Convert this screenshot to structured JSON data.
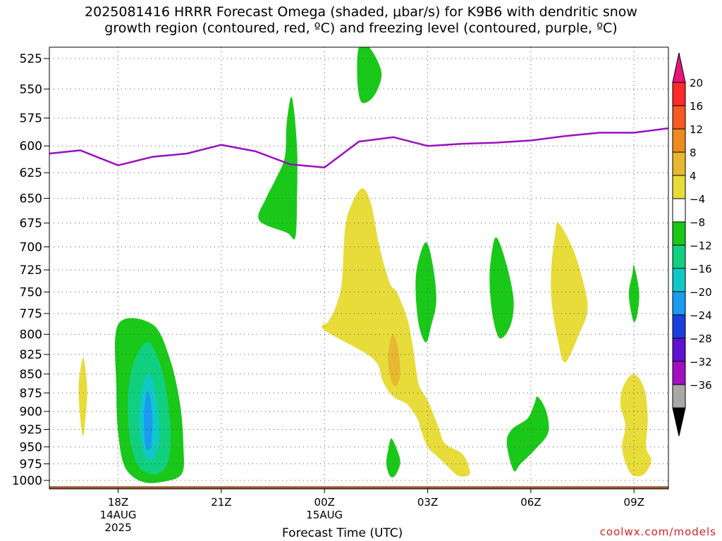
{
  "title": {
    "line1": "2025081416 HRRR Forecast Omega (shaded, μbar/s) for K9B6 with dendritic snow",
    "line2": "growth region (contoured, red, ºC) and freezing level (contoured, purple, ºC)"
  },
  "credit": "coolwx.com/models",
  "chart_data": {
    "type": "contour",
    "xlabel": "Forecast Time (UTC)",
    "x_ticks": [
      {
        "hour": 2,
        "label": "18Z",
        "sub1": "14AUG",
        "sub2": "2025"
      },
      {
        "hour": 5,
        "label": "21Z",
        "sub1": "",
        "sub2": ""
      },
      {
        "hour": 8,
        "label": "00Z",
        "sub1": "15AUG",
        "sub2": ""
      },
      {
        "hour": 11,
        "label": "03Z",
        "sub1": "",
        "sub2": ""
      },
      {
        "hour": 14,
        "label": "06Z",
        "sub1": "",
        "sub2": ""
      },
      {
        "hour": 17,
        "label": "09Z",
        "sub1": "",
        "sub2": ""
      }
    ],
    "xlim": [
      0,
      18
    ],
    "ylabel": "",
    "y_ticks": [
      525,
      550,
      575,
      600,
      625,
      650,
      675,
      700,
      725,
      750,
      775,
      800,
      825,
      850,
      875,
      900,
      925,
      950,
      975,
      1000
    ],
    "ylim": [
      516,
      1013
    ],
    "y_scale": "log-pressure",
    "grid": true,
    "colorbar": {
      "labels": [
        "20",
        "16",
        "12",
        "8",
        "4",
        "−4",
        "−8",
        "−12",
        "−16",
        "−20",
        "−24",
        "−28",
        "−32",
        "−36"
      ],
      "colors": [
        "#ff2a2a",
        "#f55a20",
        "#ef8a1e",
        "#e8b830",
        "#e8dc3a",
        "#ffffff",
        "#19c819",
        "#10d080",
        "#10c8c8",
        "#1a9af0",
        "#1a40e0",
        "#6010d0",
        "#a010c0",
        "#a8a8a8"
      ],
      "top_arrow_color": "#e8147a",
      "bottom_arrow_color": "#000000"
    },
    "freezing_level": {
      "color": "#9a10c0",
      "points": [
        [
          0,
          607
        ],
        [
          0.9,
          604
        ],
        [
          2,
          618
        ],
        [
          3,
          610
        ],
        [
          4,
          607
        ],
        [
          5,
          599
        ],
        [
          6,
          605
        ],
        [
          7,
          617
        ],
        [
          8,
          620
        ],
        [
          9,
          596
        ],
        [
          10,
          592
        ],
        [
          11,
          600
        ],
        [
          12,
          598
        ],
        [
          13,
          597
        ],
        [
          14,
          595
        ],
        [
          15,
          591
        ],
        [
          16,
          588
        ],
        [
          17,
          588
        ],
        [
          18,
          584
        ]
      ]
    },
    "ground": {
      "color": "#a0522d",
      "pressure": 1009
    },
    "omega_regions": [
      {
        "value": -6,
        "color": "#19c819",
        "points": [
          [
            2.0,
            788
          ],
          [
            3.0,
            788
          ],
          [
            3.5,
            830
          ],
          [
            3.8,
            890
          ],
          [
            3.9,
            950
          ],
          [
            3.85,
            990
          ],
          [
            3.3,
            1002
          ],
          [
            2.7,
            1002
          ],
          [
            2.2,
            980
          ],
          [
            2.0,
            930
          ],
          [
            1.95,
            870
          ]
        ]
      },
      {
        "value": -10,
        "color": "#10d080",
        "points": [
          [
            2.9,
            810
          ],
          [
            3.3,
            850
          ],
          [
            3.5,
            910
          ],
          [
            3.5,
            960
          ],
          [
            3.3,
            985
          ],
          [
            2.9,
            990
          ],
          [
            2.5,
            970
          ],
          [
            2.3,
            920
          ],
          [
            2.3,
            870
          ],
          [
            2.5,
            830
          ]
        ]
      },
      {
        "value": -14,
        "color": "#10c8c8",
        "points": [
          [
            2.9,
            850
          ],
          [
            3.1,
            880
          ],
          [
            3.2,
            930
          ],
          [
            3.1,
            960
          ],
          [
            2.9,
            970
          ],
          [
            2.7,
            950
          ],
          [
            2.6,
            910
          ],
          [
            2.7,
            870
          ]
        ]
      },
      {
        "value": -18,
        "color": "#1a9af0",
        "points": [
          [
            2.9,
            875
          ],
          [
            3.0,
            910
          ],
          [
            2.95,
            950
          ],
          [
            2.8,
            950
          ],
          [
            2.75,
            910
          ],
          [
            2.8,
            880
          ]
        ]
      },
      {
        "value": 5,
        "color": "#e8dc3a",
        "points": [
          [
            1.0,
            830
          ],
          [
            1.1,
            870
          ],
          [
            1.05,
            910
          ],
          [
            0.98,
            935
          ],
          [
            0.9,
            910
          ],
          [
            0.85,
            870
          ],
          [
            0.9,
            845
          ]
        ]
      },
      {
        "value": -6,
        "color": "#19c819",
        "points": [
          [
            7.05,
            557
          ],
          [
            7.2,
            600
          ],
          [
            7.2,
            650
          ],
          [
            7.15,
            690
          ],
          [
            6.9,
            685
          ],
          [
            6.1,
            672
          ],
          [
            6.3,
            650
          ],
          [
            6.6,
            630
          ],
          [
            6.85,
            610
          ],
          [
            6.9,
            580
          ]
        ]
      },
      {
        "value": -6,
        "color": "#19c819",
        "points": [
          [
            9.0,
            516
          ],
          [
            9.3,
            516
          ],
          [
            9.65,
            535
          ],
          [
            9.55,
            550
          ],
          [
            9.3,
            560
          ],
          [
            9.05,
            560
          ],
          [
            8.95,
            540
          ]
        ]
      },
      {
        "value": 5,
        "color": "#e8dc3a",
        "points": [
          [
            9.1,
            640
          ],
          [
            9.35,
            655
          ],
          [
            9.6,
            700
          ],
          [
            9.9,
            740
          ],
          [
            10.1,
            750
          ],
          [
            10.4,
            780
          ],
          [
            10.55,
            810
          ],
          [
            10.65,
            840
          ],
          [
            10.75,
            865
          ],
          [
            11.0,
            885
          ],
          [
            11.3,
            920
          ],
          [
            11.5,
            945
          ],
          [
            12.0,
            960
          ],
          [
            12.2,
            980
          ],
          [
            12.2,
            992
          ],
          [
            11.9,
            993
          ],
          [
            11.6,
            980
          ],
          [
            11.3,
            965
          ],
          [
            11.0,
            950
          ],
          [
            10.8,
            925
          ],
          [
            10.7,
            910
          ],
          [
            10.4,
            890
          ],
          [
            10.0,
            880
          ],
          [
            9.7,
            860
          ],
          [
            9.4,
            830
          ],
          [
            8.0,
            795
          ],
          [
            8.1,
            785
          ],
          [
            8.3,
            770
          ],
          [
            8.5,
            740
          ],
          [
            8.6,
            680
          ],
          [
            8.8,
            655
          ]
        ]
      },
      {
        "value": 9,
        "color": "#e8b830",
        "points": [
          [
            10.0,
            800
          ],
          [
            10.15,
            820
          ],
          [
            10.2,
            850
          ],
          [
            10.1,
            865
          ],
          [
            9.95,
            860
          ],
          [
            9.85,
            835
          ],
          [
            9.9,
            810
          ]
        ]
      },
      {
        "value": -6,
        "color": "#19c819",
        "points": [
          [
            9.95,
            938
          ],
          [
            10.15,
            960
          ],
          [
            10.2,
            975
          ],
          [
            10.05,
            993
          ],
          [
            9.9,
            993
          ],
          [
            9.8,
            975
          ],
          [
            9.85,
            955
          ]
        ]
      },
      {
        "value": -6,
        "color": "#19c819",
        "points": [
          [
            10.95,
            695
          ],
          [
            11.15,
            720
          ],
          [
            11.25,
            760
          ],
          [
            11.1,
            790
          ],
          [
            10.95,
            810
          ],
          [
            10.75,
            790
          ],
          [
            10.65,
            750
          ],
          [
            10.7,
            720
          ]
        ]
      },
      {
        "value": -6,
        "color": "#19c819",
        "points": [
          [
            13.0,
            690
          ],
          [
            13.3,
            720
          ],
          [
            13.5,
            760
          ],
          [
            13.4,
            790
          ],
          [
            13.1,
            805
          ],
          [
            12.9,
            780
          ],
          [
            12.8,
            740
          ],
          [
            12.85,
            710
          ]
        ]
      },
      {
        "value": 5,
        "color": "#e8dc3a",
        "points": [
          [
            14.8,
            675
          ],
          [
            15.2,
            700
          ],
          [
            15.5,
            735
          ],
          [
            15.65,
            770
          ],
          [
            15.4,
            800
          ],
          [
            15.0,
            835
          ],
          [
            14.8,
            810
          ],
          [
            14.6,
            760
          ],
          [
            14.6,
            720
          ],
          [
            14.7,
            690
          ]
        ]
      },
      {
        "value": -6,
        "color": "#19c819",
        "points": [
          [
            17.0,
            720
          ],
          [
            17.15,
            750
          ],
          [
            17.1,
            775
          ],
          [
            17.0,
            785
          ],
          [
            16.9,
            770
          ],
          [
            16.85,
            750
          ],
          [
            16.95,
            730
          ]
        ]
      },
      {
        "value": -6,
        "color": "#19c819",
        "points": [
          [
            14.2,
            880
          ],
          [
            14.45,
            900
          ],
          [
            14.5,
            930
          ],
          [
            14.1,
            955
          ],
          [
            13.7,
            975
          ],
          [
            13.5,
            985
          ],
          [
            13.3,
            945
          ],
          [
            13.45,
            925
          ],
          [
            13.9,
            910
          ],
          [
            14.1,
            890
          ]
        ]
      },
      {
        "value": 5,
        "color": "#e8dc3a",
        "points": [
          [
            17.0,
            850
          ],
          [
            17.3,
            870
          ],
          [
            17.4,
            910
          ],
          [
            17.35,
            950
          ],
          [
            17.5,
            970
          ],
          [
            17.3,
            990
          ],
          [
            17.0,
            993
          ],
          [
            16.8,
            980
          ],
          [
            16.65,
            950
          ],
          [
            16.75,
            920
          ],
          [
            16.6,
            890
          ],
          [
            16.7,
            865
          ]
        ]
      }
    ]
  }
}
